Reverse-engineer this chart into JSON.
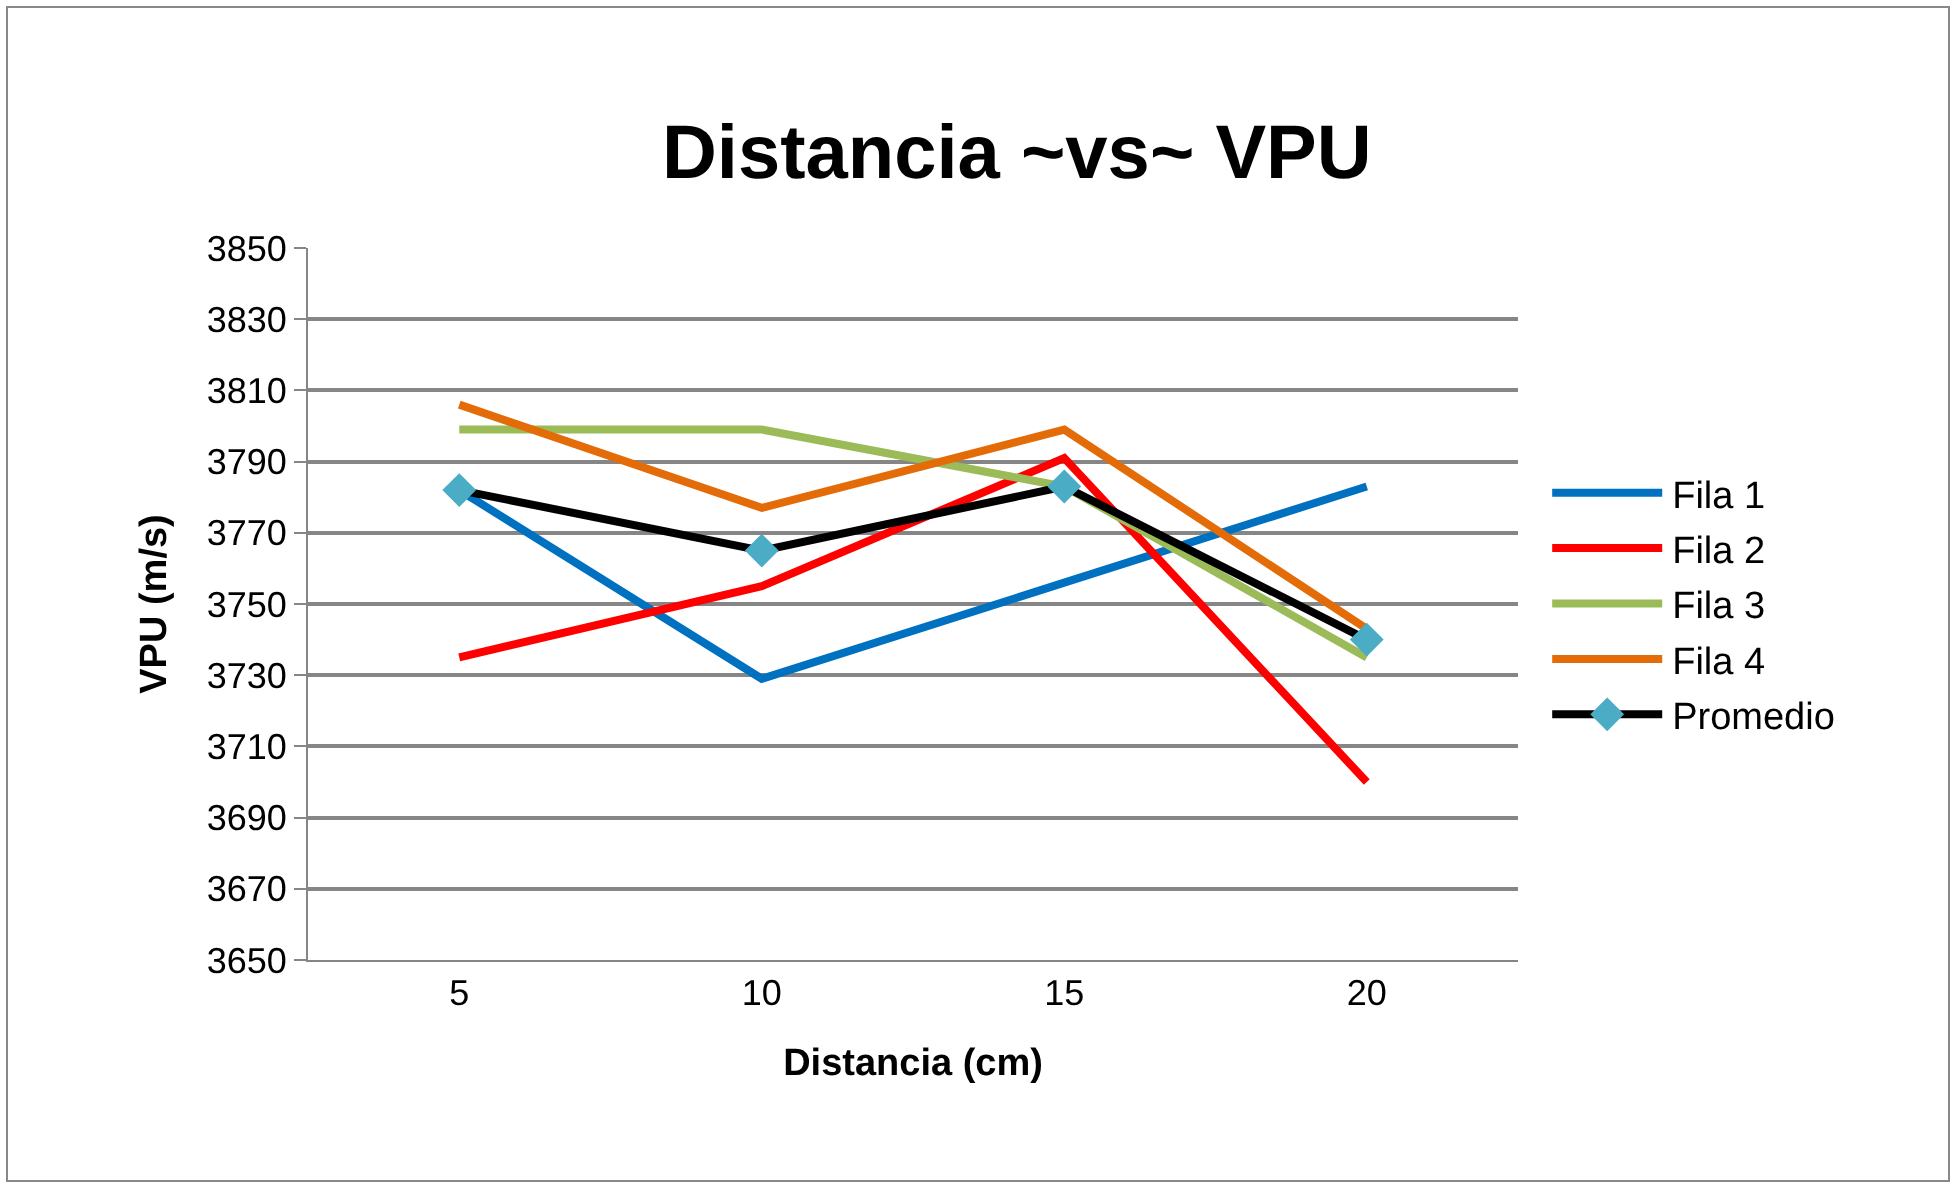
{
  "chart_data": {
    "type": "line",
    "title": "Distancia ~vs~ VPU",
    "xlabel": "Distancia (cm)",
    "ylabel": "VPU (m/s)",
    "categories": [
      "5",
      "10",
      "15",
      "20"
    ],
    "series": [
      {
        "name": "Fila 1",
        "color": "#0070c0",
        "values": [
          3782,
          3729,
          3756,
          3783
        ],
        "marker": "none"
      },
      {
        "name": "Fila 2",
        "color": "#ff0000",
        "values": [
          3735,
          3755,
          3791,
          3700
        ],
        "marker": "none"
      },
      {
        "name": "Fila 3",
        "color": "#9bbb59",
        "values": [
          3799,
          3799,
          3783,
          3735
        ],
        "marker": "none"
      },
      {
        "name": "Fila 4",
        "color": "#e36c09",
        "values": [
          3806,
          3777,
          3799,
          3743
        ],
        "marker": "none"
      },
      {
        "name": "Promedio",
        "color": "#000000",
        "values": [
          3782,
          3765,
          3783,
          3740
        ],
        "marker": "diamond",
        "colors": [
          "#4bacc6",
          "#4bacc6",
          "#4bacc6",
          "#4bacc6"
        ]
      }
    ],
    "ylim": [
      3650,
      3850
    ],
    "yticks": [
      3650,
      3670,
      3690,
      3710,
      3730,
      3750,
      3770,
      3790,
      3810,
      3830,
      3850
    ],
    "grid": "y",
    "legend": "right",
    "line_style": "solid"
  }
}
